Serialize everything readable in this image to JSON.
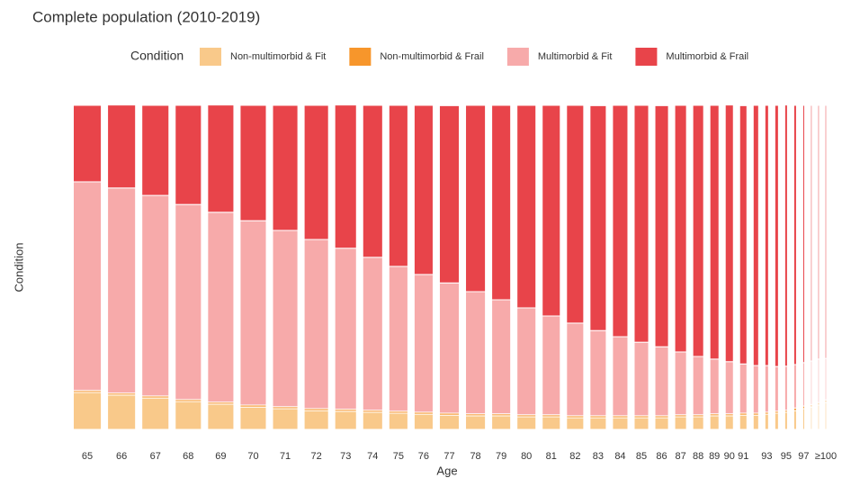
{
  "chart_data": {
    "type": "mosaic",
    "title": "Complete population (2010-2019)",
    "legend_title": "Condition",
    "y_label": "Condition",
    "x_label": "Age",
    "categories": [
      "65",
      "66",
      "67",
      "68",
      "69",
      "70",
      "71",
      "72",
      "73",
      "74",
      "75",
      "76",
      "77",
      "78",
      "79",
      "80",
      "81",
      "82",
      "83",
      "84",
      "85",
      "86",
      "87",
      "88",
      "89",
      "90",
      "91",
      null,
      "93",
      null,
      "95",
      null,
      "97",
      null,
      null,
      "≥100"
    ],
    "widths": [
      38,
      38,
      37,
      36,
      36,
      36,
      35,
      34,
      31,
      29,
      28,
      28,
      29,
      29,
      28,
      28,
      27,
      26,
      25,
      24,
      23,
      22,
      20,
      19,
      17,
      16,
      15,
      13,
      11,
      11,
      10,
      10,
      9,
      8,
      8,
      8
    ],
    "ylim": [
      0,
      100
    ],
    "series": [
      {
        "name": "Non-multimorbid & Fit",
        "color": "#f9c98a",
        "values": [
          11.4,
          10.6,
          9.7,
          8.6,
          7.8,
          6.9,
          6.4,
          5.8,
          5.6,
          5.3,
          5.0,
          4.7,
          4.4,
          4.2,
          4.2,
          3.9,
          3.9,
          3.6,
          3.6,
          3.6,
          3.6,
          3.6,
          3.9,
          3.9,
          4.2,
          4.2,
          4.4,
          4.4,
          4.7,
          5.0,
          5.3,
          5.8,
          6.4,
          6.9,
          7.5,
          8.3
        ]
      },
      {
        "name": "Non-multimorbid & Frail",
        "color": "#f7962b",
        "values": [
          0.6,
          0.6,
          0.6,
          0.6,
          0.6,
          0.6,
          0.6,
          0.6,
          0.6,
          0.6,
          0.6,
          0.6,
          0.6,
          0.6,
          0.6,
          0.6,
          0.6,
          0.6,
          0.6,
          0.6,
          0.6,
          0.6,
          0.6,
          0.6,
          0.6,
          0.6,
          0.6,
          0.6,
          0.6,
          0.6,
          0.6,
          0.8,
          0.8,
          0.8,
          0.8,
          0.8
        ]
      },
      {
        "name": "Multimorbid & Fit",
        "color": "#f7aaaa",
        "values": [
          64.4,
          63.3,
          61.9,
          60.2,
          58.6,
          56.9,
          54.4,
          52.2,
          49.7,
          47.2,
          44.7,
          42.5,
          40.2,
          37.7,
          35.2,
          33.0,
          30.5,
          28.6,
          26.3,
          24.4,
          22.7,
          21.3,
          19.4,
          18.0,
          16.9,
          16.1,
          15.2,
          14.7,
          14.4,
          13.8,
          13.6,
          13.4,
          13.4,
          13.4,
          13.4,
          12.8
        ]
      },
      {
        "name": "Multimorbid & Frail",
        "color": "#e8444a",
        "values": [
          23.6,
          25.6,
          27.8,
          30.6,
          33.1,
          35.6,
          38.6,
          41.4,
          44.2,
          46.9,
          49.7,
          52.2,
          54.7,
          57.5,
          60.0,
          62.5,
          65.0,
          67.2,
          69.4,
          71.4,
          73.1,
          74.4,
          76.1,
          77.5,
          78.3,
          79.2,
          79.7,
          80.3,
          80.3,
          80.6,
          80.6,
          80.0,
          79.4,
          78.9,
          78.3,
          78.1
        ]
      }
    ]
  }
}
